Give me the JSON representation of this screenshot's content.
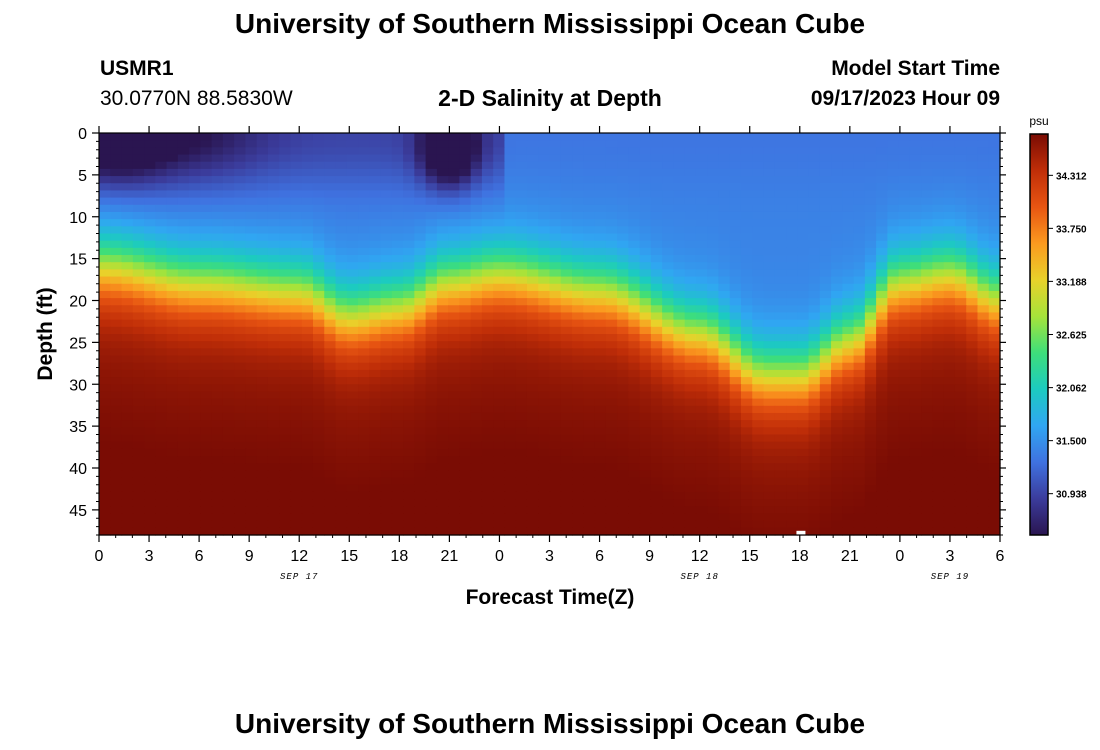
{
  "header": {
    "title": "University of Southern Mississippi Ocean Cube",
    "station_id": "USMR1",
    "station_coords": "30.0770N  88.5830W",
    "plot_title": "2-D Salinity at Depth",
    "model_start_label": "Model Start Time",
    "model_start_value": "09/17/2023 Hour 09"
  },
  "footer": {
    "title": "University of Southern Mississippi Ocean Cube"
  },
  "colors": {
    "background": "#ffffff",
    "axis": "#000000"
  },
  "chart_data": {
    "type": "heatmap",
    "title": "2-D Salinity at Depth",
    "xlabel": "Forecast Time(Z)",
    "ylabel": "Depth (ft)",
    "x_tick_labels": [
      "0",
      "3",
      "6",
      "9",
      "12",
      "15",
      "18",
      "21",
      "0",
      "3",
      "6",
      "9",
      "12",
      "15",
      "18",
      "21",
      "0",
      "3",
      "6"
    ],
    "x_range_hours": [
      0,
      54
    ],
    "date_labels": [
      {
        "label": "SEP 17",
        "hour": 12
      },
      {
        "label": "SEP 18",
        "hour": 36
      },
      {
        "label": "SEP 19",
        "hour": 51
      }
    ],
    "y_ticks": [
      0,
      5,
      10,
      15,
      20,
      25,
      30,
      35,
      40,
      45
    ],
    "y_range_ft": [
      0,
      48
    ],
    "colorbar": {
      "unit": "psu",
      "min": 30.5,
      "max": 34.75,
      "tick_labels": [
        "34.312",
        "33.750",
        "33.188",
        "32.625",
        "32.062",
        "31.500",
        "30.938"
      ],
      "colormap": [
        "#2a1550",
        "#3b3c9c",
        "#3f72e0",
        "#30a6f2",
        "#1ccbc0",
        "#3ede7a",
        "#a6e33a",
        "#e9d12a",
        "#fb9a1f",
        "#e85512",
        "#c02e08",
        "#7a0c04"
      ]
    },
    "description_points": {
      "surface_fresh_band_ft": [
        0,
        8
      ],
      "mixed_layer_depth_ft_by_hour": [
        [
          0,
          14
        ],
        [
          6,
          16
        ],
        [
          12,
          17
        ],
        [
          15,
          20
        ],
        [
          18,
          19
        ],
        [
          21,
          16
        ],
        [
          24,
          15
        ],
        [
          30,
          17
        ],
        [
          36,
          22
        ],
        [
          40,
          27
        ],
        [
          42,
          27
        ],
        [
          45,
          23
        ],
        [
          48,
          16
        ],
        [
          51,
          15
        ],
        [
          54,
          18
        ]
      ],
      "deep_salinity_psu": 34.6,
      "surface_salinity_psu": 31.4,
      "min_salinity_psu": 30.6
    }
  }
}
